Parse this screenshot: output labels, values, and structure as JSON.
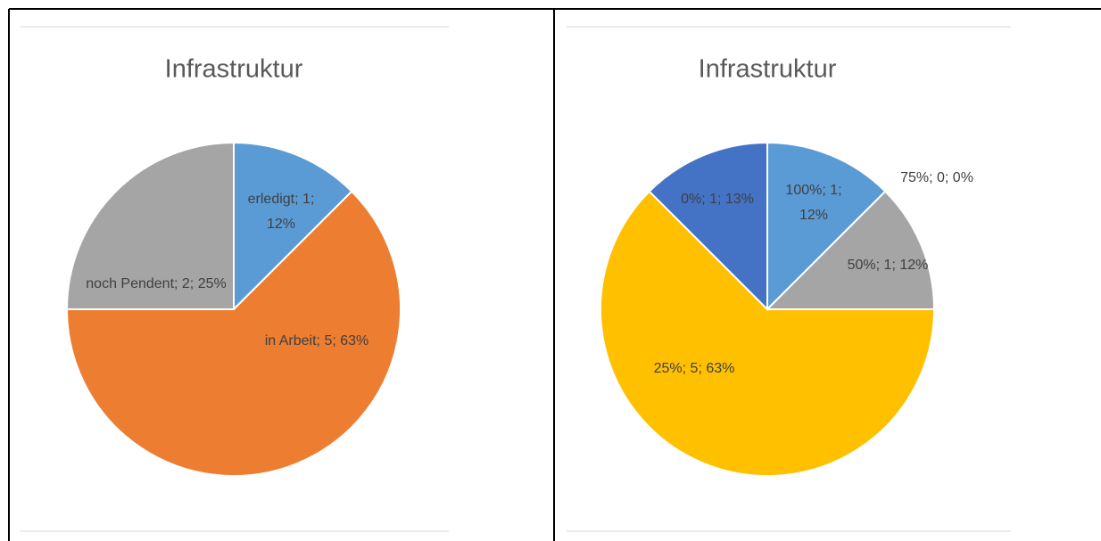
{
  "chart_data": [
    {
      "type": "pie",
      "title": "Infrastruktur",
      "categories": [
        "erledigt",
        "in Arbeit",
        "noch Pendent"
      ],
      "values": [
        1,
        5,
        2
      ],
      "value_labels": [
        "erledigt; 1; 12%",
        "in Arbeit; 5; 63%",
        "noch Pendent; 2; 25%"
      ],
      "colors": [
        "#5b9bd5",
        "#ed7d31",
        "#a5a5a5"
      ]
    },
    {
      "type": "pie",
      "title": "Infrastruktur",
      "categories": [
        "100%",
        "75%",
        "50%",
        "25%",
        "0%"
      ],
      "values": [
        1,
        0,
        1,
        5,
        1
      ],
      "value_labels": [
        "100%; 1; 12%",
        "75%; 0; 0%",
        "50%; 1; 12%",
        "25%; 5; 63%",
        "0%; 1; 13%"
      ],
      "colors": [
        "#5b9bd5",
        "#ed7d31",
        "#a5a5a5",
        "#ffc000",
        "#4472c4"
      ]
    }
  ]
}
